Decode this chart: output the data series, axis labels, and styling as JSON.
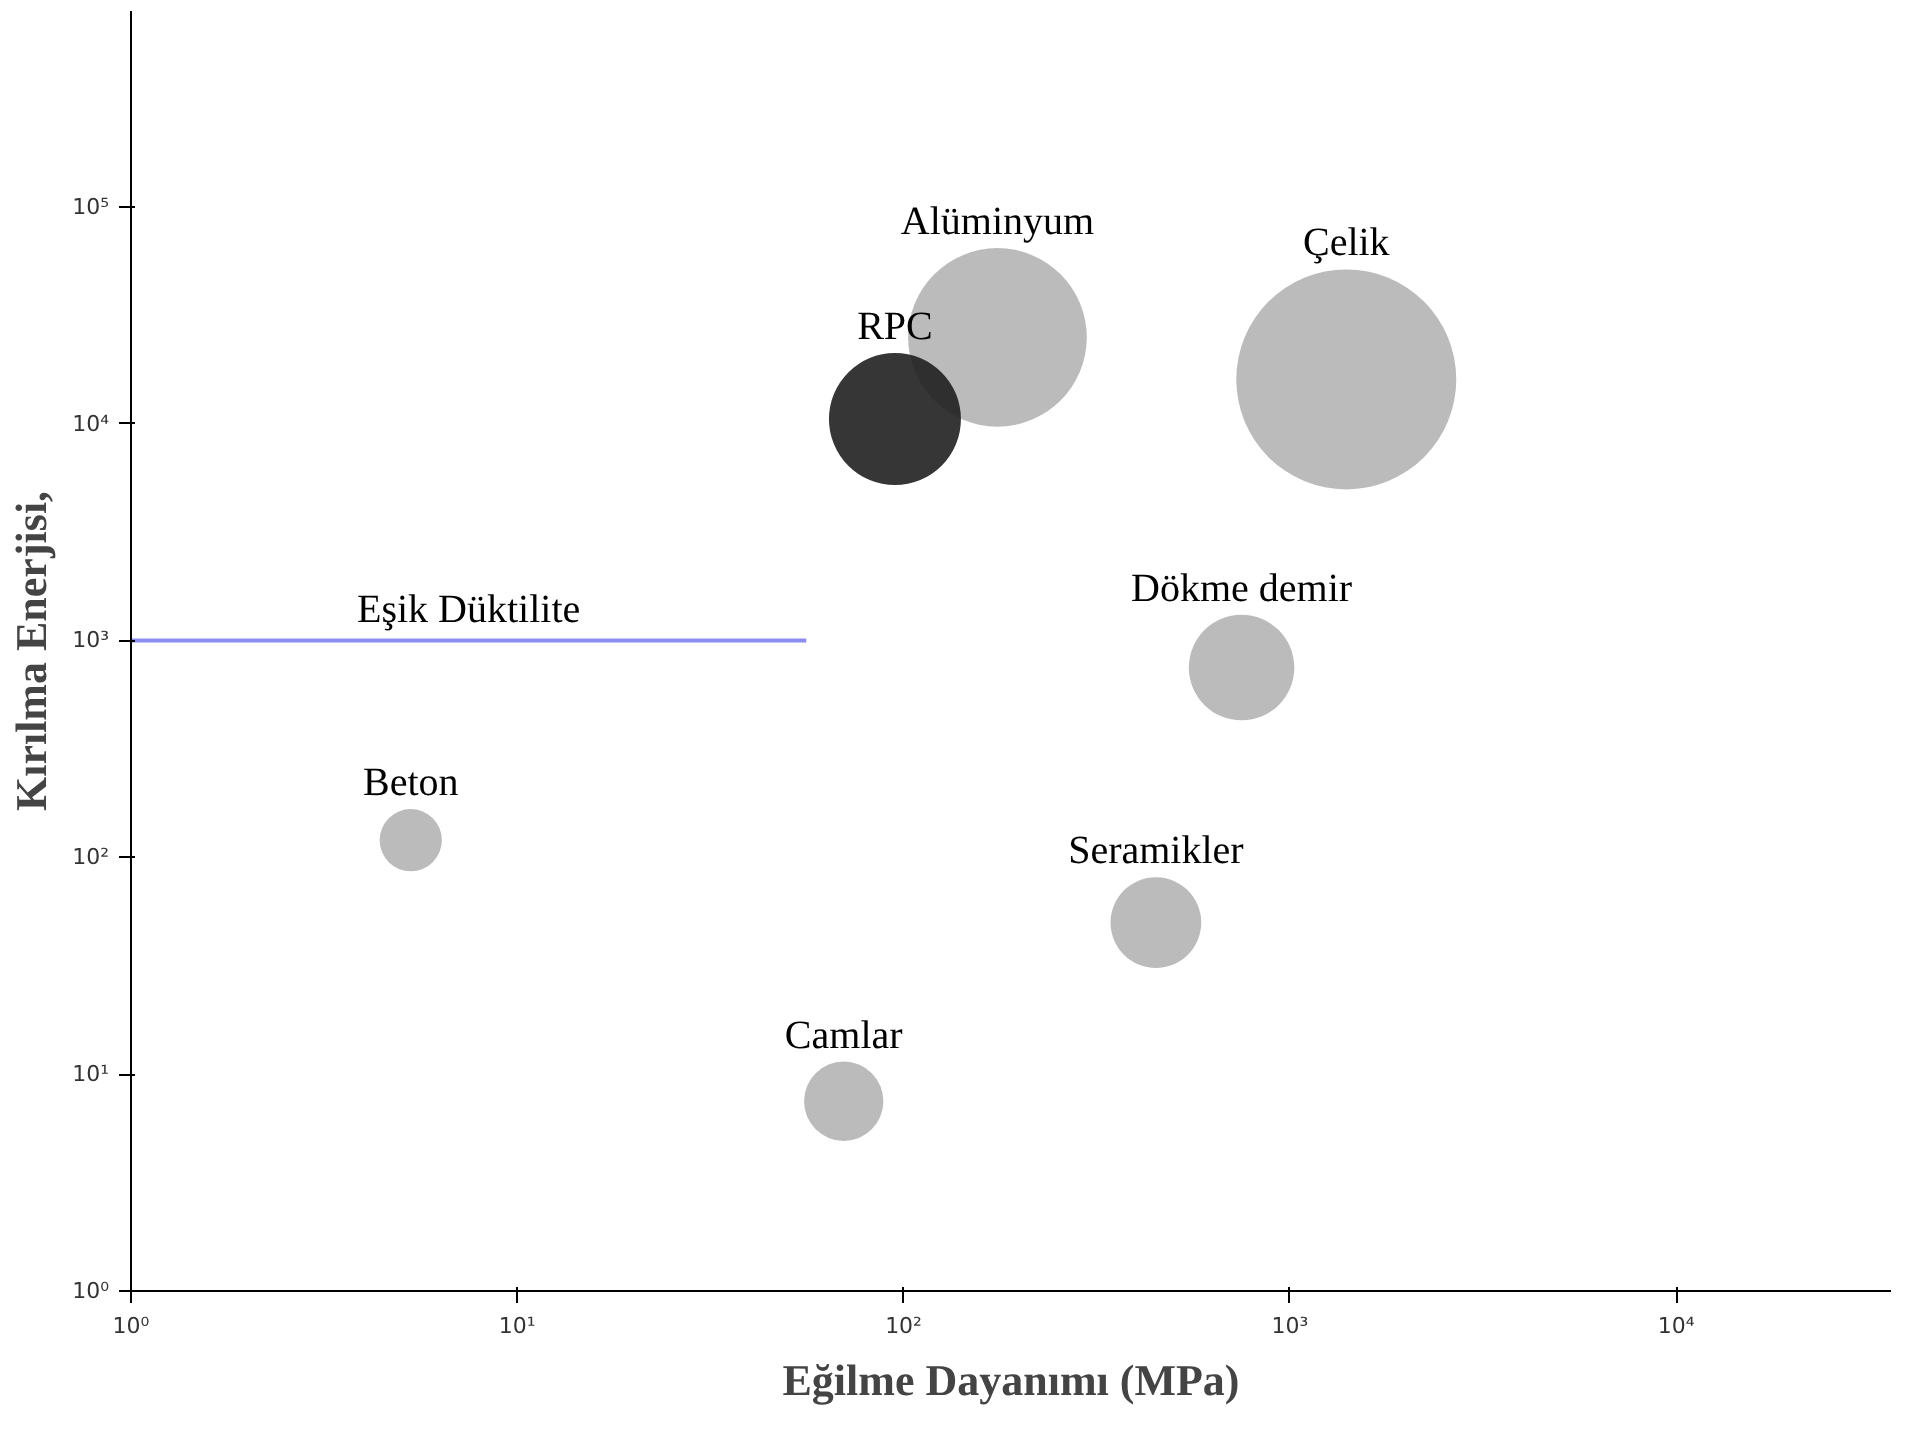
{
  "chart_data": {
    "type": "bubble",
    "xlabel": "Eğilme Dayanımı (MPa)",
    "ylabel": "Kırılma Enerjisi,",
    "log": "xy",
    "grid": false,
    "xlim": [
      1,
      36000
    ],
    "ylim": [
      1,
      800000
    ],
    "xticks": [
      {
        "value": 1,
        "label": "10⁰"
      },
      {
        "value": 10,
        "label": "10¹"
      },
      {
        "value": 100,
        "label": "10²"
      },
      {
        "value": 1000,
        "label": "10³"
      },
      {
        "value": 10000,
        "label": "10⁴"
      }
    ],
    "yticks": [
      {
        "value": 1,
        "label": "10⁰"
      },
      {
        "value": 10,
        "label": "10¹"
      },
      {
        "value": 100,
        "label": "10²"
      },
      {
        "value": 1000,
        "label": "10³"
      },
      {
        "value": 10000,
        "label": "10⁴"
      },
      {
        "value": 100000,
        "label": "10⁵"
      }
    ],
    "series": [
      {
        "name": "Alüminyum",
        "color": "#b4b4b4",
        "x": [
          175
        ],
        "values": [
          25000
        ],
        "sizes": [
          0.66
        ]
      },
      {
        "name": "Çelik",
        "color": "#b4b4b4",
        "x": [
          1400
        ],
        "values": [
          16000
        ],
        "sizes": [
          1
        ]
      },
      {
        "name": "RPC",
        "color": "#202020",
        "x": [
          95
        ],
        "values": [
          10500
        ],
        "sizes": [
          0.36
        ]
      },
      {
        "name": "Dökme demir",
        "color": "#b4b4b4",
        "x": [
          750
        ],
        "values": [
          750
        ],
        "sizes": [
          0.23
        ]
      },
      {
        "name": "Beton",
        "color": "#b4b4b4",
        "x": [
          5.3
        ],
        "values": [
          120
        ],
        "sizes": [
          0.08
        ]
      },
      {
        "name": "Seramikler",
        "color": "#b4b4b4",
        "x": [
          450
        ],
        "values": [
          50
        ],
        "sizes": [
          0.17
        ]
      },
      {
        "name": "Camlar",
        "color": "#b4b4b4",
        "x": [
          70
        ],
        "values": [
          7.5
        ],
        "sizes": [
          0.13
        ]
      },
      {
        "name": "Eşik Düktilite",
        "type": "line",
        "color": "#8c8cf0",
        "x": [
          1,
          56
        ],
        "values": [
          1000,
          1000
        ]
      }
    ]
  }
}
